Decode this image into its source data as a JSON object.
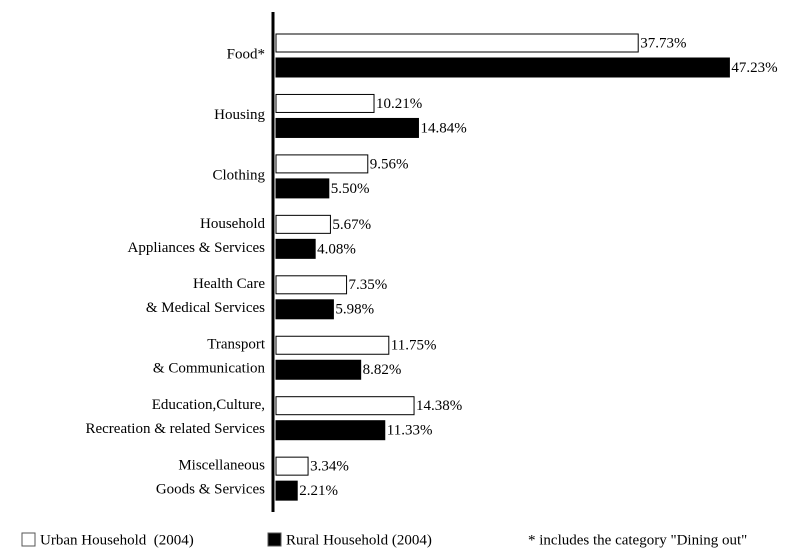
{
  "chart_data": {
    "type": "hbar",
    "categories": [
      [
        "Food*"
      ],
      [
        "Housing"
      ],
      [
        "Clothing"
      ],
      [
        "Household",
        "Appliances & Services"
      ],
      [
        "Health Care",
        "& Medical Services"
      ],
      [
        "Transport",
        "& Communication"
      ],
      [
        "Education,Culture,",
        "Recreation & related Services"
      ],
      [
        "Miscellaneous",
        "Goods & Services"
      ]
    ],
    "series": [
      {
        "name": "Urban Household  (2004)",
        "color": "#ffffff",
        "values": [
          37.73,
          10.21,
          9.56,
          5.67,
          7.35,
          11.75,
          14.38,
          3.34
        ],
        "value_labels": [
          "37.73%",
          "10.21%",
          "9.56%",
          "5.67%",
          "7.35%",
          "11.75%",
          "14.38%",
          "3.34%"
        ]
      },
      {
        "name": "Rural Household (2004)",
        "color": "#000000",
        "values": [
          47.23,
          14.84,
          5.5,
          4.08,
          5.98,
          8.82,
          11.33,
          2.21
        ],
        "value_labels": [
          "47.23%",
          "14.84%",
          "5.50%",
          "4.08%",
          "5.98%",
          "8.82%",
          "11.33%",
          "2.21%"
        ]
      }
    ],
    "annotation": "* includes the category \"Dining out\""
  }
}
